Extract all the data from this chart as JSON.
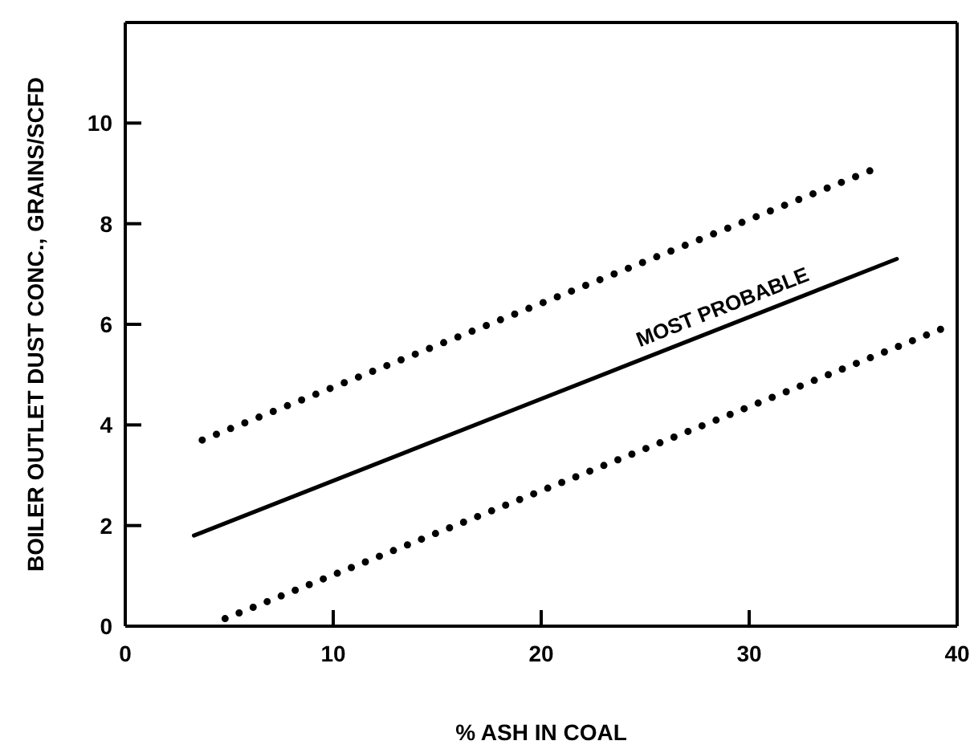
{
  "chart_data": {
    "type": "line",
    "xlabel": "% ASH IN COAL",
    "ylabel": "BOILER OUTLET DUST CONC., GRAINS/SCFD",
    "xlim": [
      0,
      40
    ],
    "xticks": [
      0,
      10,
      20,
      30,
      40
    ],
    "ylim": [
      0,
      12
    ],
    "yticks": [
      0,
      2,
      4,
      6,
      8,
      10
    ],
    "grid": false,
    "legend": false,
    "marker": "none",
    "series": [
      {
        "color": "#000000",
        "line_style": "dotted",
        "x": [
          3.7,
          35.8
        ],
        "values": [
          3.7,
          9.05
        ]
      },
      {
        "name": "MOST PROBABLE",
        "color": "#000000",
        "line_style": "solid",
        "x": [
          3.3,
          37.1
        ],
        "values": [
          1.8,
          7.3
        ]
      },
      {
        "color": "#000000",
        "line_style": "dotted",
        "x": [
          4.8,
          39.2
        ],
        "values": [
          0.15,
          5.9
        ]
      }
    ]
  }
}
